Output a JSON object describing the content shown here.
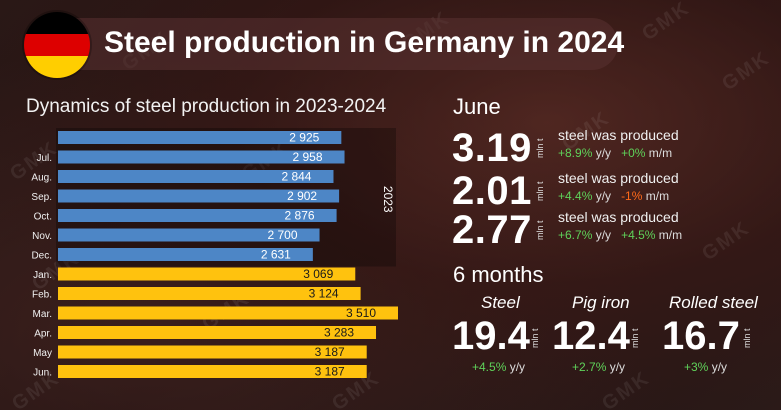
{
  "title": "Steel production in Germany in 2024",
  "watermark": "GMK",
  "flag": {
    "colors": [
      "#000000",
      "#dd0000",
      "#ffce00"
    ]
  },
  "chart_data": {
    "type": "bar",
    "orientation": "horizontal",
    "title": "Dynamics of steel production in 2023-2024",
    "categories": [
      "",
      "Jul.",
      "Aug.",
      "Sep.",
      "Oct.",
      "Nov.",
      "Dec.",
      "Jan.",
      "Feb.",
      "Mar.",
      "Apr.",
      "May",
      "Jun."
    ],
    "value_labels": [
      "2 925",
      "2 958",
      "2 844",
      "2 902",
      "2 876",
      "2 700",
      "2 631",
      "3 069",
      "3 124",
      "3 510",
      "3 283",
      "3 187",
      "3 187"
    ],
    "series": [
      {
        "name": "2023",
        "color": "#4d86c6",
        "values": [
          2925,
          2958,
          2844,
          2902,
          2876,
          2700,
          2631,
          null,
          null,
          null,
          null,
          null,
          null
        ]
      },
      {
        "name": "2024",
        "color": "#ffc20e",
        "values": [
          null,
          null,
          null,
          null,
          null,
          null,
          null,
          3069,
          3124,
          3510,
          3283,
          3187,
          3187
        ]
      }
    ],
    "group_label": "2023",
    "grid": false
  },
  "june": {
    "label": "June",
    "rows": [
      {
        "value": "3.19",
        "unit": "mln t",
        "text": "steel was produced",
        "yy": "+8.9%",
        "yy_unit": "y/y",
        "mm": "+0%",
        "mm_unit": "m/m",
        "mm_color": "green"
      },
      {
        "value": "2.01",
        "unit": "mln t",
        "text": "steel was produced",
        "yy": "+4.4%",
        "yy_unit": "y/y",
        "mm": "-1%",
        "mm_unit": "m/m",
        "mm_color": "orange"
      },
      {
        "value": "2.77",
        "unit": "mln t",
        "text": "steel was produced",
        "yy": "+6.7%",
        "yy_unit": "y/y",
        "mm": "+4.5%",
        "mm_unit": "m/m",
        "mm_color": "green"
      }
    ]
  },
  "six_months": {
    "label": "6 months",
    "items": [
      {
        "label": "Steel",
        "value": "19.4",
        "unit": "mln t",
        "change": "+4.5%",
        "change_unit": "y/y"
      },
      {
        "label": "Pig iron",
        "value": "12.4",
        "unit": "mln t",
        "change": "+2.7%",
        "change_unit": "y/y"
      },
      {
        "label": "Rolled steel",
        "value": "16.7",
        "unit": "mln t",
        "change": "+3%",
        "change_unit": "y/y"
      }
    ]
  }
}
